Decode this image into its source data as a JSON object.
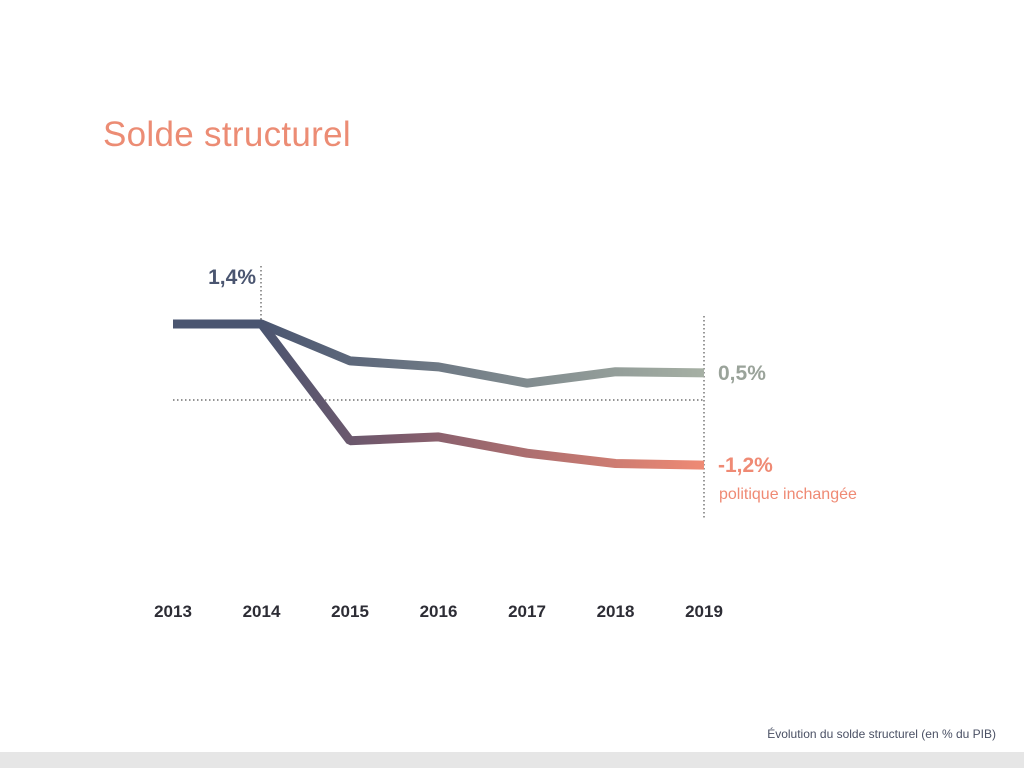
{
  "title": "Solde structurel",
  "footer_note": "Évolution du solde structurel (en % du PIB)",
  "chart_data": {
    "type": "line",
    "x": [
      2013,
      2014,
      2015,
      2016,
      2017,
      2018,
      2019
    ],
    "tick_labels": [
      "2013",
      "2014",
      "2015",
      "2016",
      "2017",
      "2018",
      "2019"
    ],
    "ylim": [
      -2,
      2
    ],
    "grid": false,
    "series": [
      {
        "values": [
          1.4,
          1.4,
          0.72,
          0.61,
          0.31,
          0.52,
          0.5
        ],
        "color_start": "#4a5570",
        "color_end": "#a6b0a4"
      },
      {
        "name": "politique inchangée",
        "values": [
          1.4,
          1.4,
          -0.75,
          -0.68,
          -0.98,
          -1.17,
          -1.2
        ],
        "color_start": "#4a5570",
        "color_end": "#ef8a74"
      }
    ],
    "annotations": {
      "start_label": "1,4%",
      "end_label_upper": "0,5%",
      "end_label_lower": "-1,2%",
      "lower_series_label": "politique inchangée"
    },
    "colors": {
      "start": "#4a5570",
      "upper_end": "#a6b0a4",
      "lower_end": "#ef8a74",
      "title": "#ec8c74"
    }
  }
}
